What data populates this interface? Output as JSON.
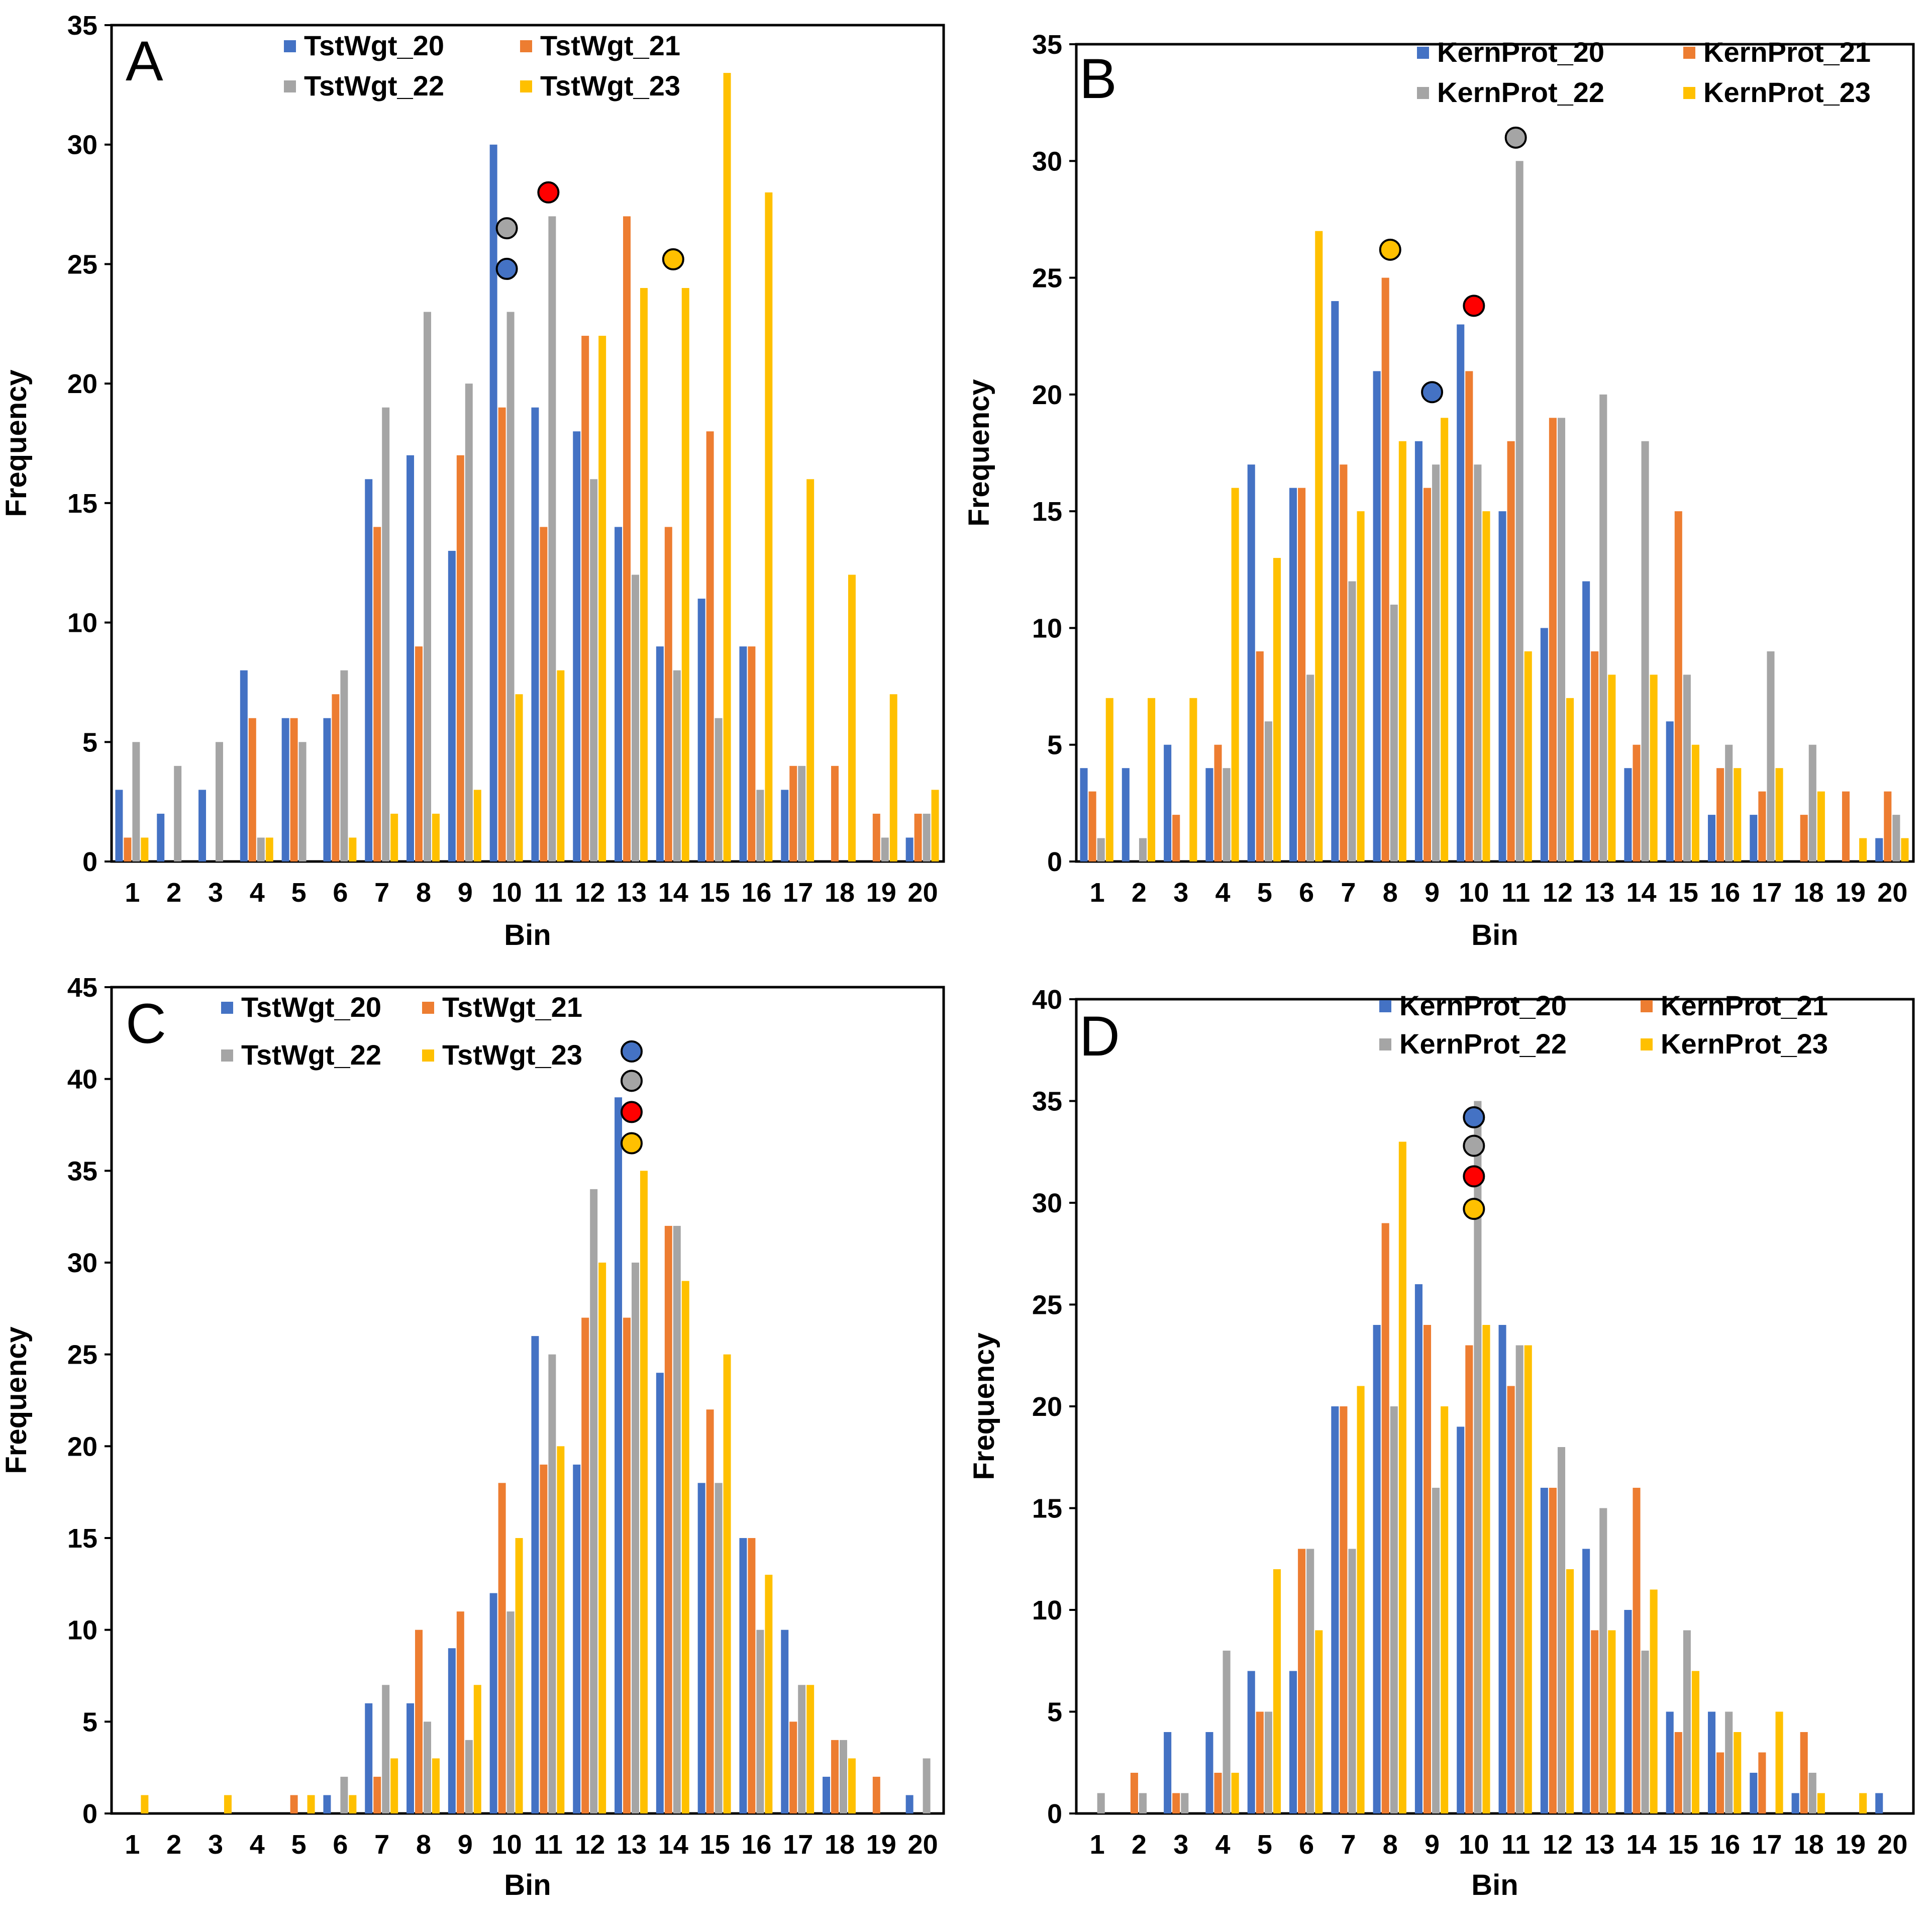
{
  "colors": {
    "s20": "#4472C4",
    "s21": "#ED7D31",
    "s22": "#A5A5A5",
    "s23": "#FFC000",
    "marker_red": "#FF0000"
  },
  "chart_data": [
    {
      "type": "bar",
      "panel_label": "A",
      "xlabel": "Bin",
      "ylabel": "Frequency",
      "ylim": [
        0,
        35
      ],
      "y_ticks": [
        0,
        5,
        10,
        15,
        20,
        25,
        30,
        35
      ],
      "categories": [
        "1",
        "2",
        "3",
        "4",
        "5",
        "6",
        "7",
        "8",
        "9",
        "10",
        "11",
        "12",
        "13",
        "14",
        "15",
        "16",
        "17",
        "18",
        "19",
        "20"
      ],
      "legend_position": "top-center",
      "series": [
        {
          "name": "TstWgt_20",
          "color": "#4472C4",
          "values": [
            3,
            2,
            3,
            8,
            6,
            6,
            16,
            17,
            13,
            30,
            19,
            18,
            14,
            9,
            11,
            9,
            3,
            0,
            0,
            1
          ]
        },
        {
          "name": "TstWgt_21",
          "color": "#ED7D31",
          "values": [
            1,
            0,
            0,
            6,
            6,
            7,
            14,
            9,
            17,
            19,
            14,
            22,
            27,
            14,
            18,
            9,
            4,
            4,
            2,
            2
          ]
        },
        {
          "name": "TstWgt_22",
          "color": "#A5A5A5",
          "values": [
            5,
            4,
            5,
            1,
            5,
            8,
            19,
            23,
            20,
            23,
            27,
            16,
            12,
            8,
            6,
            3,
            4,
            0,
            1,
            2
          ]
        },
        {
          "name": "TstWgt_23",
          "color": "#FFC000",
          "values": [
            1,
            0,
            0,
            1,
            0,
            1,
            2,
            2,
            3,
            7,
            8,
            22,
            24,
            24,
            33,
            28,
            16,
            12,
            7,
            3
          ]
        }
      ],
      "markers": [
        {
          "x": 10,
          "y": 24.8,
          "color": "#4472C4"
        },
        {
          "x": 10,
          "y": 26.5,
          "color": "#A5A5A5"
        },
        {
          "x": 11,
          "y": 28,
          "color": "#FF0000"
        },
        {
          "x": 14,
          "y": 25.2,
          "color": "#FFC000"
        }
      ]
    },
    {
      "type": "bar",
      "panel_label": "B",
      "xlabel": "Bin",
      "ylabel": "Frequency",
      "ylim": [
        0,
        35
      ],
      "y_ticks": [
        0,
        5,
        10,
        15,
        20,
        25,
        30,
        35
      ],
      "categories": [
        "1",
        "2",
        "3",
        "4",
        "5",
        "6",
        "7",
        "8",
        "9",
        "10",
        "11",
        "12",
        "13",
        "14",
        "15",
        "16",
        "17",
        "18",
        "19",
        "20"
      ],
      "legend_position": "top-right",
      "series": [
        {
          "name": "KernProt_20",
          "color": "#4472C4",
          "values": [
            4,
            4,
            5,
            4,
            17,
            16,
            24,
            21,
            18,
            23,
            15,
            10,
            12,
            4,
            6,
            2,
            2,
            0,
            0,
            1
          ]
        },
        {
          "name": "KernProt_21",
          "color": "#ED7D31",
          "values": [
            3,
            0,
            2,
            5,
            9,
            16,
            17,
            25,
            16,
            21,
            18,
            19,
            9,
            5,
            15,
            4,
            3,
            2,
            3,
            3
          ]
        },
        {
          "name": "KernProt_22",
          "color": "#A5A5A5",
          "values": [
            1,
            1,
            0,
            4,
            6,
            8,
            12,
            11,
            17,
            17,
            30,
            19,
            20,
            18,
            8,
            5,
            9,
            5,
            0,
            2
          ]
        },
        {
          "name": "KernProt_23",
          "color": "#FFC000",
          "values": [
            7,
            7,
            7,
            16,
            13,
            27,
            15,
            18,
            19,
            15,
            9,
            7,
            8,
            8,
            5,
            4,
            4,
            3,
            1,
            1
          ]
        }
      ],
      "markers": [
        {
          "x": 8,
          "y": 26.2,
          "color": "#FFC000"
        },
        {
          "x": 9,
          "y": 20.1,
          "color": "#4472C4"
        },
        {
          "x": 10,
          "y": 23.8,
          "color": "#FF0000"
        },
        {
          "x": 11,
          "y": 31,
          "color": "#A5A5A5"
        }
      ]
    },
    {
      "type": "bar",
      "panel_label": "C",
      "xlabel": "Bin",
      "ylabel": "Frequency",
      "ylim": [
        0,
        45
      ],
      "y_ticks": [
        0,
        5,
        10,
        15,
        20,
        25,
        30,
        35,
        40,
        45
      ],
      "categories": [
        "1",
        "2",
        "3",
        "4",
        "5",
        "6",
        "7",
        "8",
        "9",
        "10",
        "11",
        "12",
        "13",
        "14",
        "15",
        "16",
        "17",
        "18",
        "19",
        "20"
      ],
      "legend_position": "top-center",
      "series": [
        {
          "name": "TstWgt_20",
          "color": "#4472C4",
          "values": [
            0,
            0,
            0,
            0,
            0,
            1,
            6,
            6,
            9,
            12,
            26,
            19,
            39,
            24,
            18,
            15,
            10,
            2,
            0,
            1
          ]
        },
        {
          "name": "TstWgt_21",
          "color": "#ED7D31",
          "values": [
            0,
            0,
            0,
            0,
            1,
            0,
            2,
            10,
            11,
            18,
            19,
            27,
            27,
            32,
            22,
            15,
            5,
            4,
            2,
            0
          ]
        },
        {
          "name": "TstWgt_22",
          "color": "#A5A5A5",
          "values": [
            0,
            0,
            0,
            0,
            0,
            2,
            7,
            5,
            4,
            11,
            25,
            34,
            30,
            32,
            18,
            10,
            7,
            4,
            0,
            3
          ]
        },
        {
          "name": "TstWgt_23",
          "color": "#FFC000",
          "values": [
            1,
            0,
            1,
            0,
            1,
            1,
            3,
            3,
            7,
            15,
            20,
            30,
            35,
            29,
            25,
            13,
            7,
            3,
            0,
            0
          ]
        }
      ],
      "markers": [
        {
          "x": 13,
          "y": 41.5,
          "color": "#4472C4"
        },
        {
          "x": 13,
          "y": 39.9,
          "color": "#A5A5A5"
        },
        {
          "x": 13,
          "y": 38.2,
          "color": "#FF0000"
        },
        {
          "x": 13,
          "y": 36.5,
          "color": "#FFC000"
        }
      ]
    },
    {
      "type": "bar",
      "panel_label": "D",
      "xlabel": "Bin",
      "ylabel": "Frequency",
      "ylim": [
        0,
        40
      ],
      "y_ticks": [
        0,
        5,
        10,
        15,
        20,
        25,
        30,
        35,
        40
      ],
      "categories": [
        "1",
        "2",
        "3",
        "4",
        "5",
        "6",
        "7",
        "8",
        "9",
        "10",
        "11",
        "12",
        "13",
        "14",
        "15",
        "16",
        "17",
        "18",
        "19",
        "20"
      ],
      "legend_position": "top-right",
      "series": [
        {
          "name": "KernProt_20",
          "color": "#4472C4",
          "values": [
            0,
            0,
            4,
            4,
            7,
            7,
            20,
            24,
            26,
            19,
            24,
            16,
            13,
            10,
            5,
            5,
            2,
            1,
            0,
            1
          ]
        },
        {
          "name": "KernProt_21",
          "color": "#ED7D31",
          "values": [
            0,
            2,
            1,
            2,
            5,
            13,
            20,
            29,
            24,
            23,
            21,
            16,
            9,
            16,
            4,
            3,
            3,
            4,
            0,
            0
          ]
        },
        {
          "name": "KernProt_22",
          "color": "#A5A5A5",
          "values": [
            1,
            1,
            1,
            8,
            5,
            13,
            13,
            20,
            16,
            35,
            23,
            18,
            15,
            8,
            9,
            5,
            0,
            2,
            0,
            0
          ]
        },
        {
          "name": "KernProt_23",
          "color": "#FFC000",
          "values": [
            0,
            0,
            0,
            2,
            12,
            9,
            21,
            33,
            20,
            24,
            23,
            12,
            9,
            11,
            7,
            4,
            5,
            1,
            1,
            0
          ]
        }
      ],
      "markers": [
        {
          "x": 10,
          "y": 34.2,
          "color": "#4472C4"
        },
        {
          "x": 10,
          "y": 32.8,
          "color": "#A5A5A5"
        },
        {
          "x": 10,
          "y": 31.3,
          "color": "#FF0000"
        },
        {
          "x": 10,
          "y": 29.7,
          "color": "#FFC000"
        }
      ]
    }
  ]
}
